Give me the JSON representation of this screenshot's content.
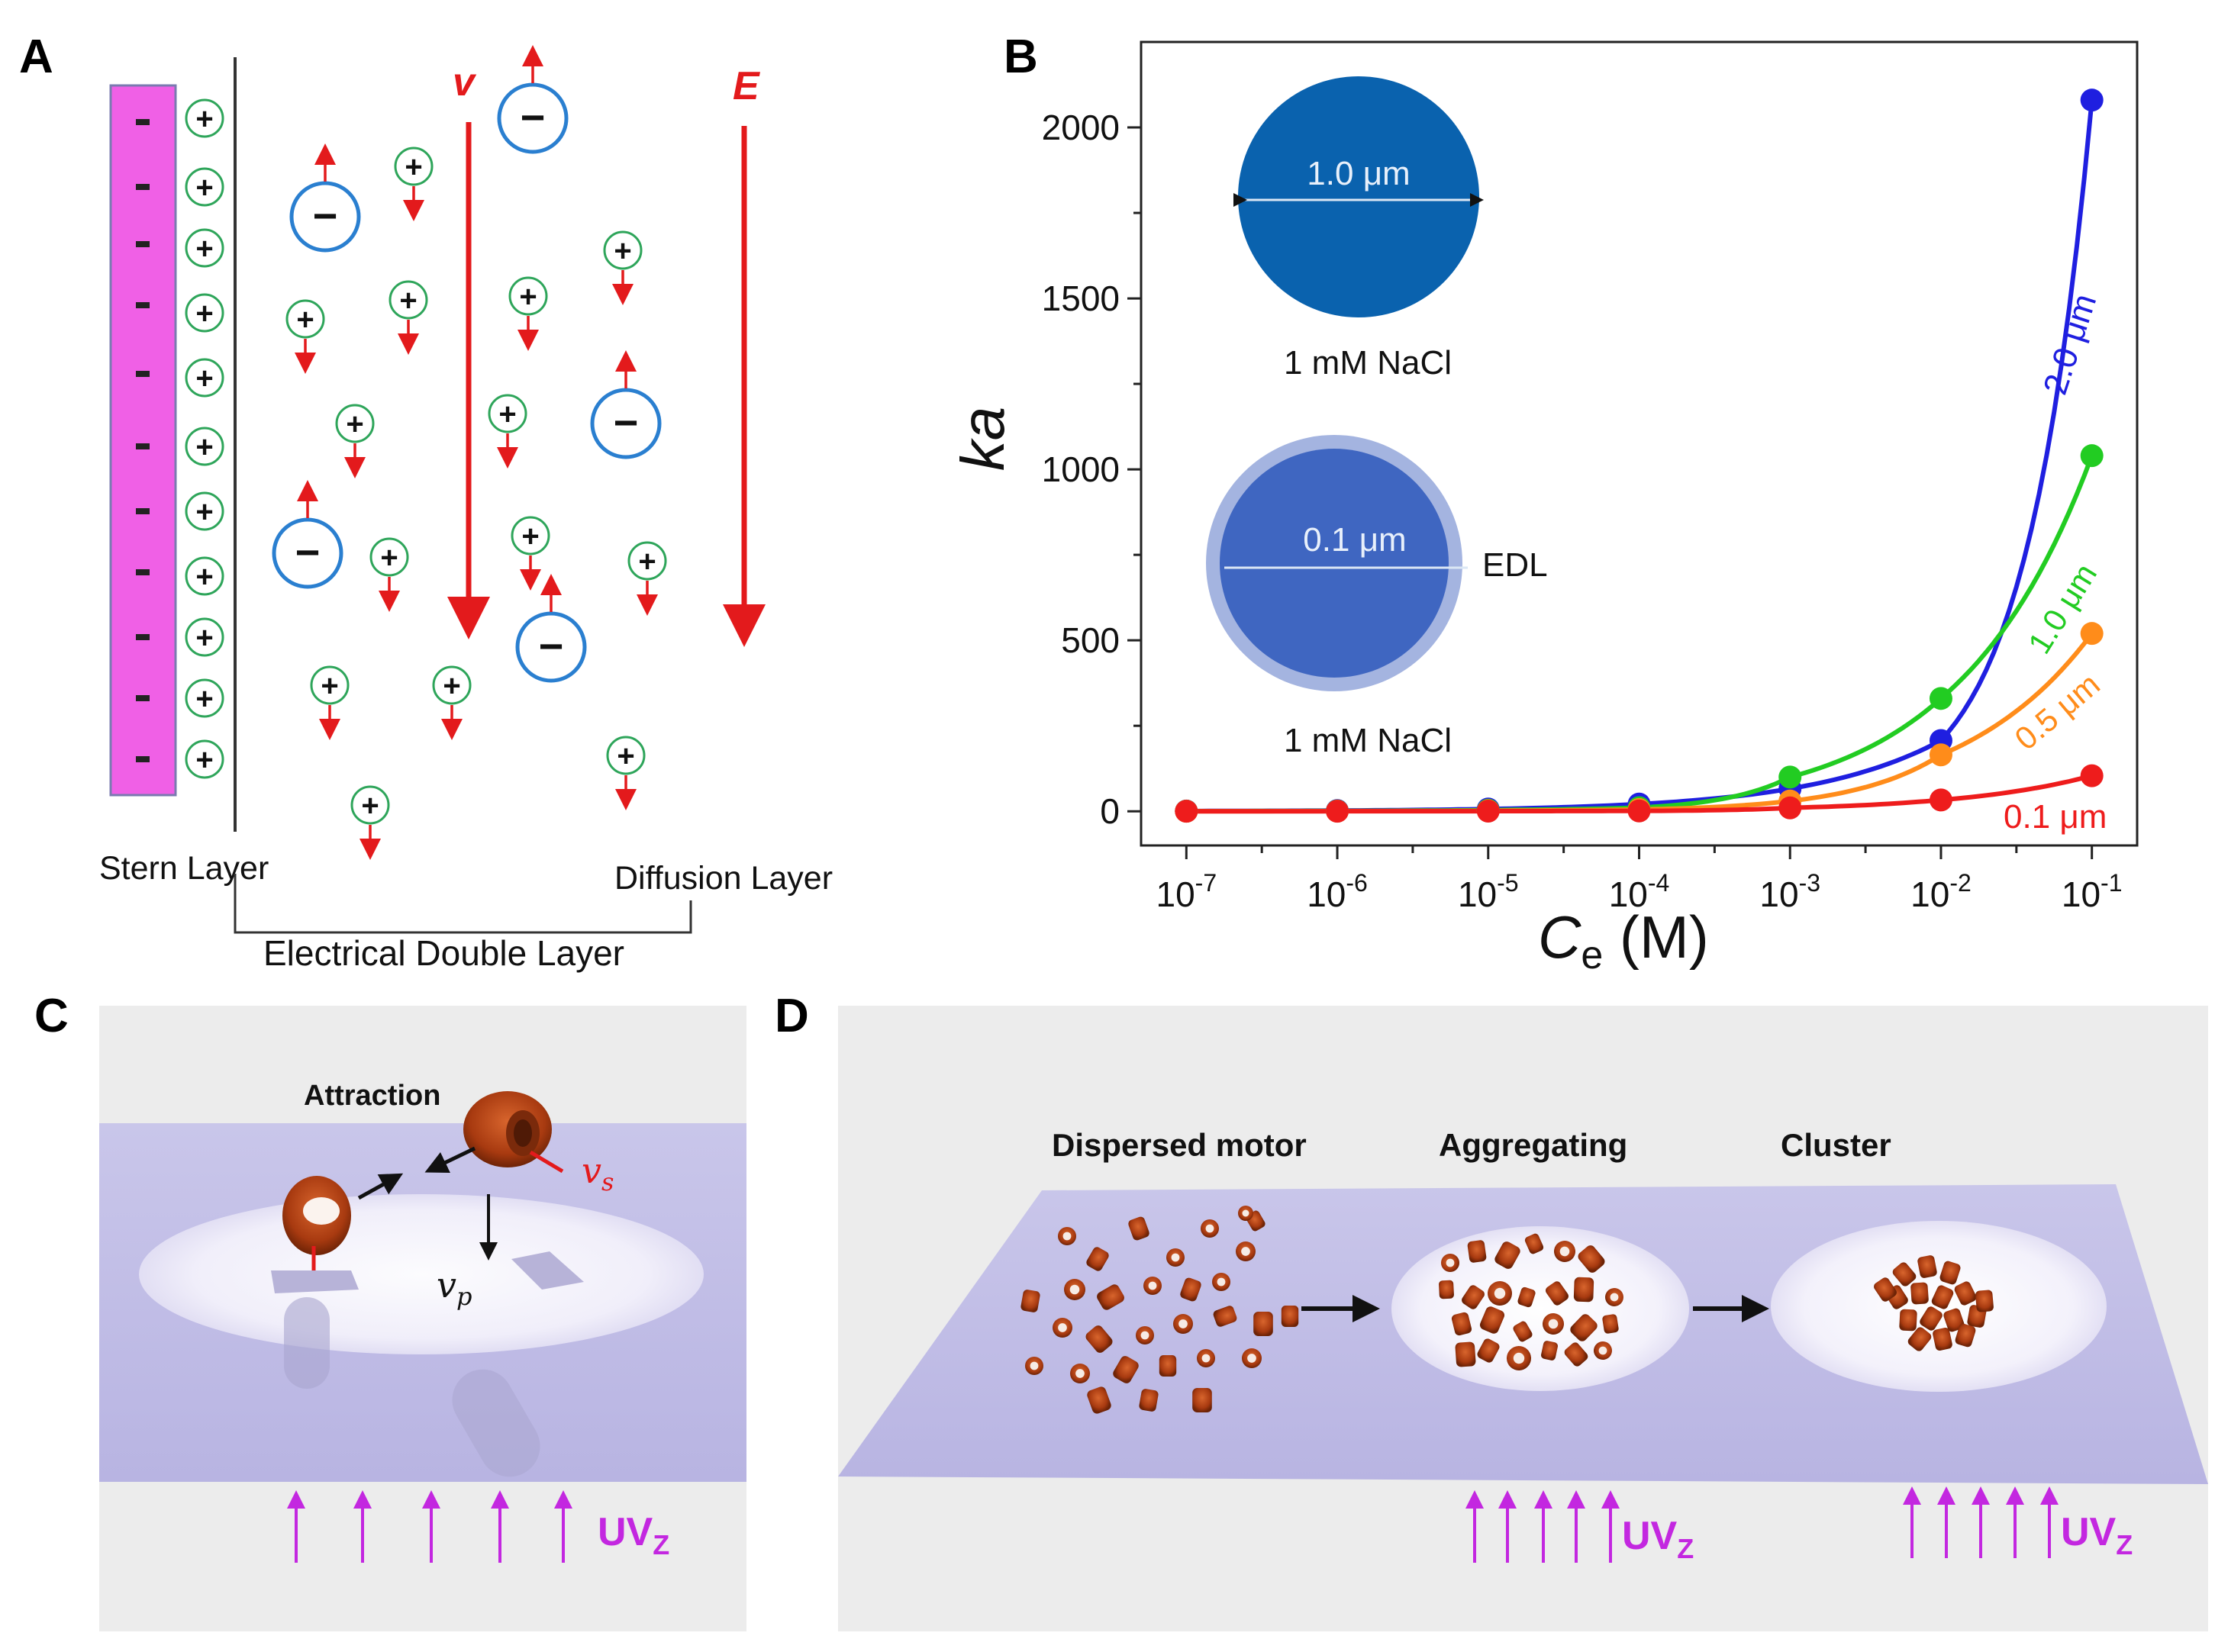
{
  "panels": {
    "a": "A",
    "b": "B",
    "c": "C",
    "d": "D"
  },
  "panel_a": {
    "v_label": "v",
    "e_label": "E",
    "stern_layer": "Stern Layer",
    "diffusion_layer": "Diffusion Layer",
    "edl_label": "Electrical Double Layer",
    "minus_sign": "−",
    "plus_sign": "+"
  },
  "panel_b": {
    "inset_large_diameter": "1.0 μm",
    "inset_large_caption": "1 mM NaCl",
    "inset_small_diameter": "0.1 μm",
    "inset_small_edl": "EDL",
    "inset_small_caption": "1 mM NaCl"
  },
  "chart_data": {
    "type": "line",
    "ylabel": "ka",
    "xlabel": "Ce (M)",
    "xlabel_main": "C",
    "xlabel_sub": "e",
    "xlabel_unit": " (M)",
    "xscale": "log",
    "x": [
      1e-07,
      1e-06,
      1e-05,
      0.0001,
      0.001,
      0.01,
      0.1
    ],
    "x_tick_labels": [
      {
        "base": "10",
        "exp": "-7"
      },
      {
        "base": "10",
        "exp": "-6"
      },
      {
        "base": "10",
        "exp": "-5"
      },
      {
        "base": "10",
        "exp": "-4"
      },
      {
        "base": "10",
        "exp": "-3"
      },
      {
        "base": "10",
        "exp": "-2"
      },
      {
        "base": "10",
        "exp": "-1"
      }
    ],
    "ylim": [
      -100,
      2250
    ],
    "yticks": [
      0,
      500,
      1000,
      1500,
      2000
    ],
    "series": [
      {
        "name": "2.0 μm",
        "color": "#1f1fe0",
        "values": [
          0.66,
          2.1,
          6.6,
          21,
          66,
          207,
          2080
        ]
      },
      {
        "name": "1.0 μm",
        "color": "#22cc22",
        "values": [
          0.33,
          1.0,
          3.3,
          10.4,
          100,
          330,
          1040
        ]
      },
      {
        "name": "0.5 μm",
        "color": "#ff8c1a",
        "values": [
          0.16,
          0.5,
          1.6,
          5.2,
          30,
          165,
          520
        ]
      },
      {
        "name": "0.1 μm",
        "color": "#ee1c1c",
        "values": [
          0.03,
          0.1,
          0.33,
          1.0,
          10,
          33,
          104
        ]
      }
    ]
  },
  "panel_c": {
    "attraction": "Attraction",
    "vs": "v",
    "vs_sub": "s",
    "vp": "v",
    "vp_sub": "p",
    "uv": "UV",
    "uv_sub": "Z"
  },
  "panel_d": {
    "dispersed": "Dispersed motor",
    "aggregating": "Aggregating",
    "cluster": "Cluster",
    "uv": "UV",
    "uv_sub": "Z"
  }
}
